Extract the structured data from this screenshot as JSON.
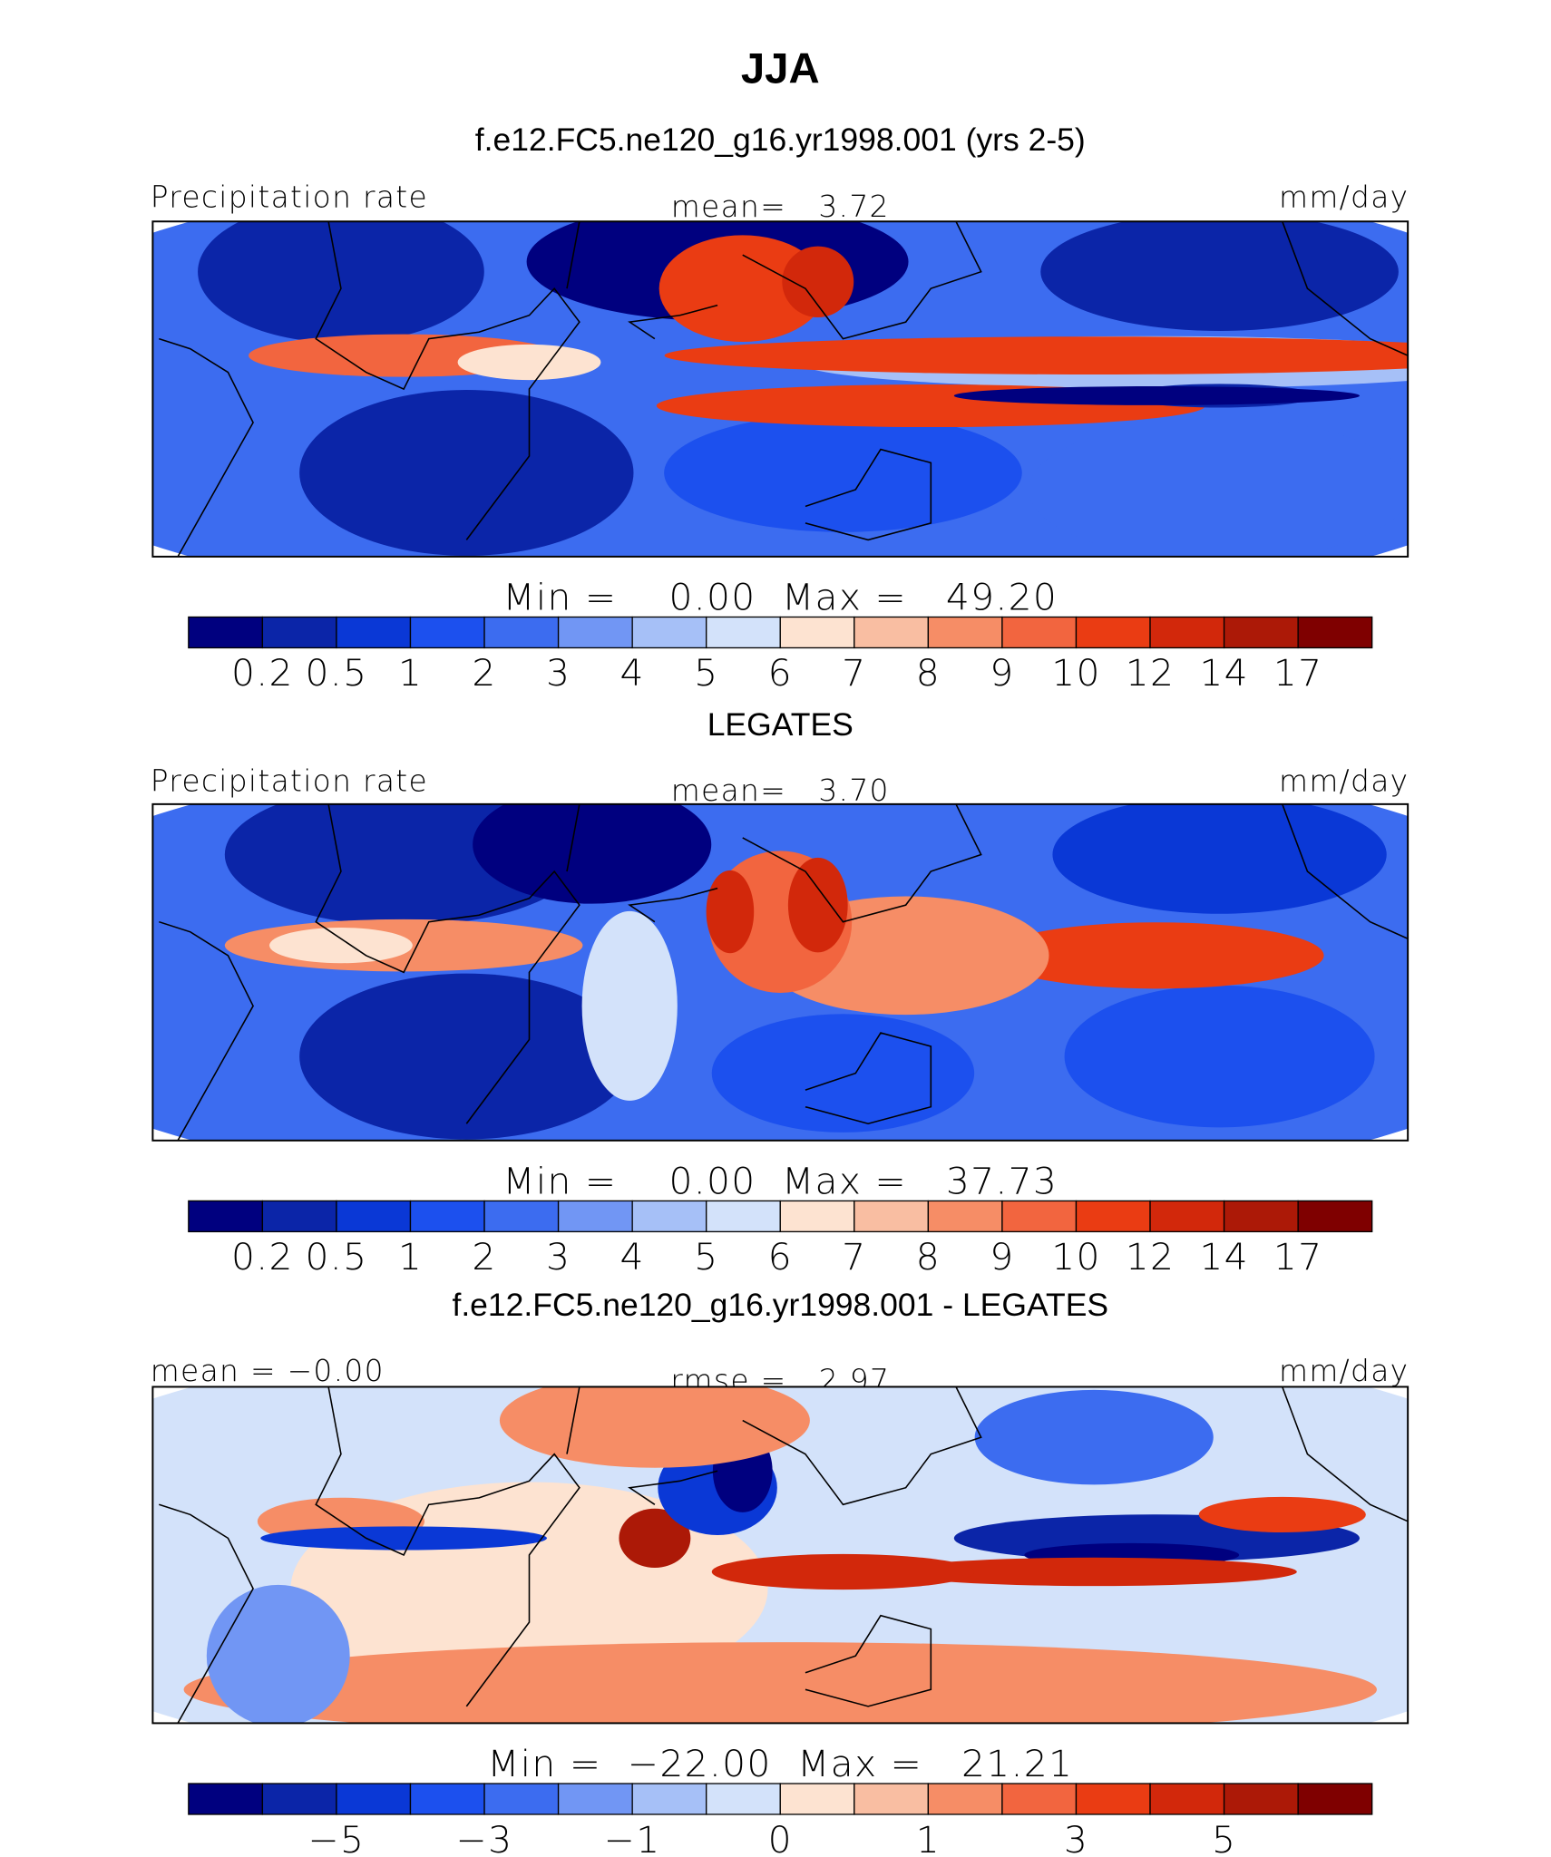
{
  "title": "JJA",
  "panels": [
    {
      "title": "f.e12.FC5.ne120_g16.yr1998.001 (yrs 2-5)",
      "left": "Precipitation rate",
      "center": "mean=   3.72",
      "right": "mm/day",
      "minmax": "Min =    0.00  Max =   49.20",
      "colorbar": {
        "colors": [
          "#00007f",
          "#0b25a8",
          "#0a38d6",
          "#1c50ee",
          "#3c6cf0",
          "#7196f4",
          "#a6c0f7",
          "#d3e2fa",
          "#fde3d1",
          "#f9bea2",
          "#f68d66",
          "#f2653f",
          "#ea3c13",
          "#d2280b",
          "#ac1907",
          "#7f0000"
        ],
        "labels": [
          "0.2",
          "0.5",
          "1",
          "2",
          "3",
          "4",
          "5",
          "6",
          "7",
          "8",
          "9",
          "10",
          "12",
          "14",
          "17"
        ]
      }
    },
    {
      "title": "LEGATES",
      "left": "Precipitation rate",
      "center": "mean=   3.70",
      "right": "mm/day",
      "minmax": "Min =    0.00  Max =   37.73",
      "colorbar": {
        "colors": [
          "#00007f",
          "#0b25a8",
          "#0a38d6",
          "#1c50ee",
          "#3c6cf0",
          "#7196f4",
          "#a6c0f7",
          "#d3e2fa",
          "#fde3d1",
          "#f9bea2",
          "#f68d66",
          "#f2653f",
          "#ea3c13",
          "#d2280b",
          "#ac1907",
          "#7f0000"
        ],
        "labels": [
          "0.2",
          "0.5",
          "1",
          "2",
          "3",
          "4",
          "5",
          "6",
          "7",
          "8",
          "9",
          "10",
          "12",
          "14",
          "17"
        ]
      }
    },
    {
      "title": "f.e12.FC5.ne120_g16.yr1998.001 - LEGATES",
      "left": "mean =  −0.00",
      "center": "rmse =   2.97",
      "right": "mm/day",
      "minmax": "Min =  −22.00  Max =   21.21",
      "colorbar": {
        "colors": [
          "#00007f",
          "#0b25a8",
          "#0a38d6",
          "#1c50ee",
          "#3c6cf0",
          "#7196f4",
          "#a6c0f7",
          "#d3e2fa",
          "#fde3d1",
          "#f9bea2",
          "#f68d66",
          "#f2653f",
          "#ea3c13",
          "#d2280b",
          "#ac1907",
          "#7f0000"
        ],
        "labels": [
          null,
          "−5",
          null,
          "−3",
          null,
          "−1",
          null,
          "0",
          null,
          "1",
          null,
          "3",
          null,
          "5",
          null
        ]
      }
    }
  ]
}
